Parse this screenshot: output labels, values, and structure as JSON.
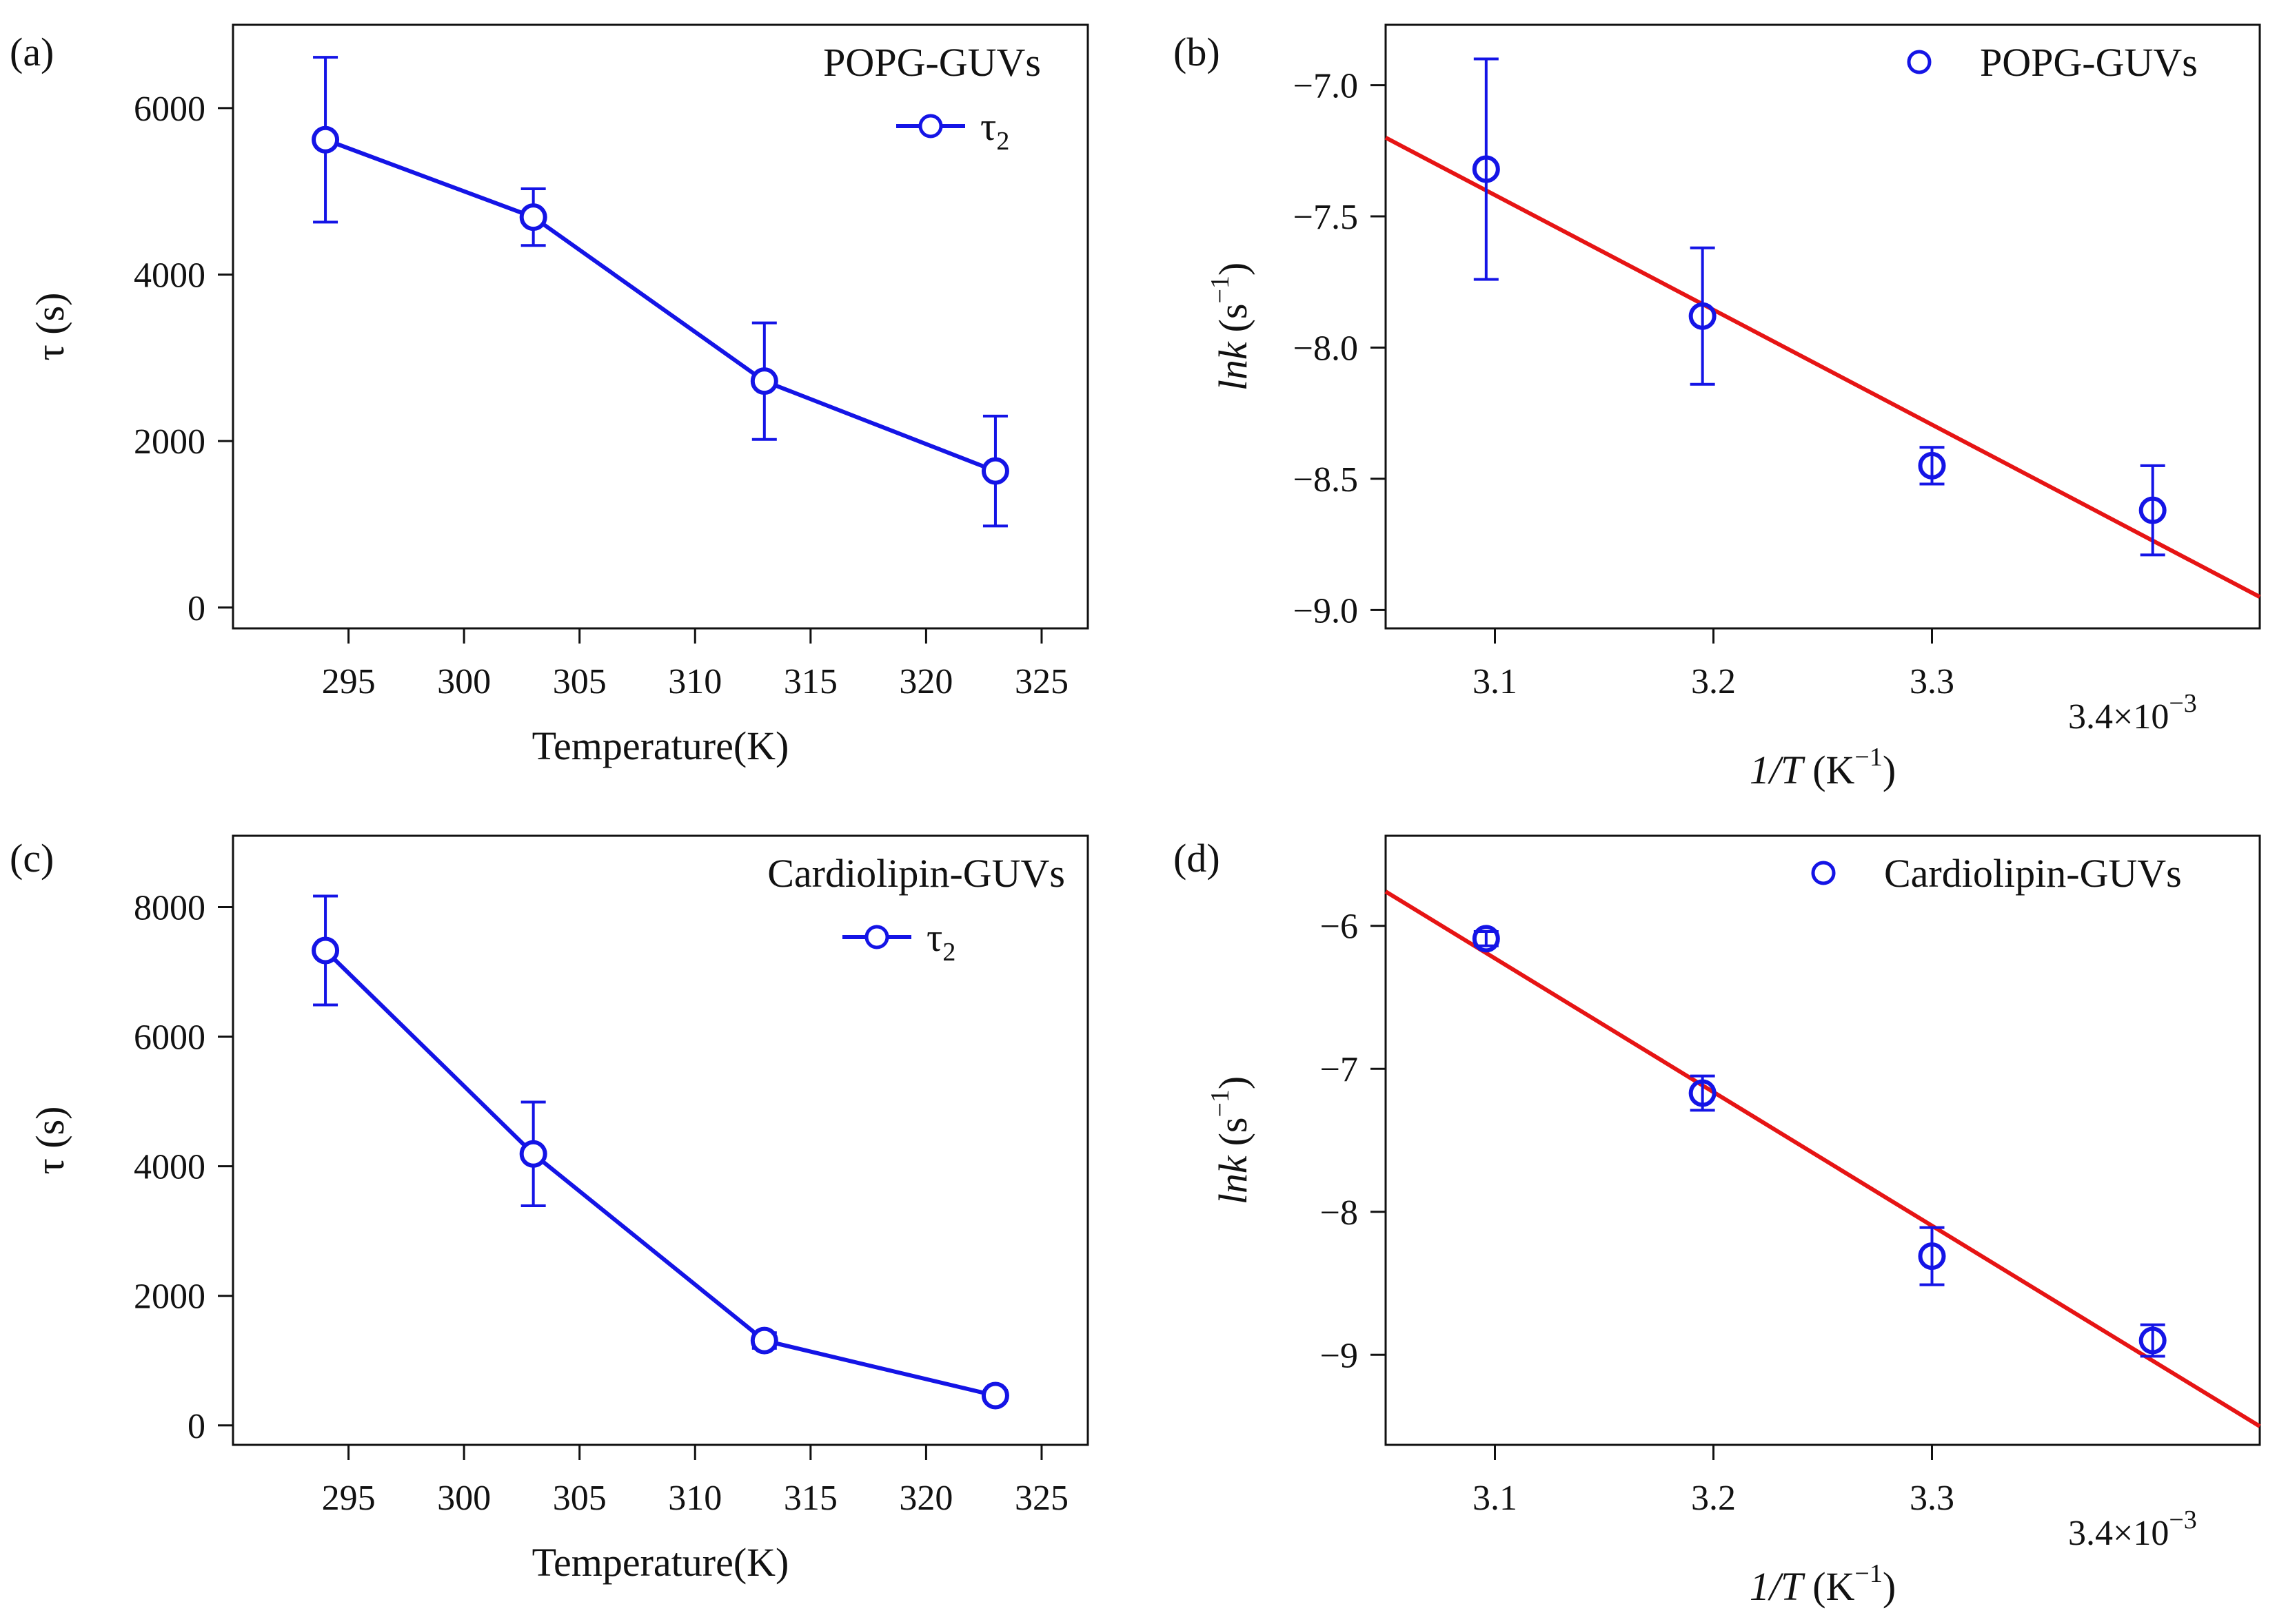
{
  "chart_data": [
    {
      "id": "a",
      "type": "line",
      "panel_label": "(a)",
      "legend_title": "POPG-GUVs",
      "xlabel": "Temperature(K)",
      "ylabel": "τ (s)",
      "xlim": [
        290,
        327
      ],
      "ylim": [
        -250,
        7000
      ],
      "xticks": [
        295,
        300,
        305,
        310,
        315,
        320,
        325
      ],
      "yticks": [
        0,
        2000,
        4000,
        6000
      ],
      "series": [
        {
          "name": "τ2",
          "name_base": "τ",
          "name_sub": "2",
          "color": "#1414e6",
          "x": [
            294,
            303,
            313,
            323
          ],
          "y": [
            5620,
            4690,
            2720,
            1640
          ],
          "err": [
            990,
            340,
            700,
            660
          ]
        }
      ]
    },
    {
      "id": "b",
      "type": "scatter",
      "panel_label": "(b)",
      "legend_title": "POPG-GUVs",
      "xlabel_italic": "1/T",
      "xlabel_unit": "(K",
      "xlabel_exp": "−1",
      "xlabel_close": ")",
      "ylabel_italic": "lnk",
      "ylabel_unit": "(s",
      "ylabel_exp": "−1",
      "ylabel_close": ")",
      "x_multiplier_label": "3.4×10",
      "x_multiplier_exp": "−3",
      "xlim": [
        3.05,
        3.45
      ],
      "ylim": [
        -9.07,
        -6.77
      ],
      "xticks": [
        3.1,
        3.2,
        3.3
      ],
      "xtick_labels": [
        "3.1",
        "3.2",
        "3.3"
      ],
      "yticks": [
        -7.0,
        -7.5,
        -8.0,
        -8.5,
        -9.0
      ],
      "ytick_labels": [
        "−7.0",
        "−7.5",
        "−8.0",
        "−8.5",
        "−9.0"
      ],
      "series": [
        {
          "name": "POPG-GUVs",
          "color": "#1414e6",
          "x": [
            3.096,
            3.195,
            3.3,
            3.401
          ],
          "y": [
            -7.32,
            -7.88,
            -8.45,
            -8.62
          ],
          "err": [
            0.42,
            0.26,
            0.07,
            0.17
          ]
        }
      ],
      "fit_line": {
        "color": "#e61414",
        "x": [
          3.05,
          3.45
        ],
        "y": [
          -7.2,
          -8.95
        ]
      }
    },
    {
      "id": "c",
      "type": "line",
      "panel_label": "(c)",
      "legend_title": "Cardiolipin-GUVs",
      "xlabel": "Temperature(K)",
      "ylabel": "τ (s)",
      "xlim": [
        290,
        327
      ],
      "ylim": [
        -300,
        9100
      ],
      "xticks": [
        295,
        300,
        305,
        310,
        315,
        320,
        325
      ],
      "yticks": [
        0,
        2000,
        4000,
        6000,
        8000
      ],
      "series": [
        {
          "name": "τ2",
          "name_base": "τ",
          "name_sub": "2",
          "color": "#1414e6",
          "x": [
            294,
            303,
            313,
            323
          ],
          "y": [
            7330,
            4190,
            1310,
            460
          ],
          "err": [
            840,
            800,
            120,
            80
          ]
        }
      ]
    },
    {
      "id": "d",
      "type": "scatter",
      "panel_label": "(d)",
      "legend_title": "Cardiolipin-GUVs",
      "xlabel_italic": "1/T",
      "xlabel_unit": "(K",
      "xlabel_exp": "−1",
      "xlabel_close": ")",
      "ylabel_italic": "lnk",
      "ylabel_unit": "(s",
      "ylabel_exp": "−1",
      "ylabel_close": ")",
      "x_multiplier_label": "3.4×10",
      "x_multiplier_exp": "−3",
      "xlim": [
        3.05,
        3.45
      ],
      "ylim": [
        -9.63,
        -5.37
      ],
      "xticks": [
        3.1,
        3.2,
        3.3
      ],
      "xtick_labels": [
        "3.1",
        "3.2",
        "3.3"
      ],
      "yticks": [
        -6,
        -7,
        -8,
        -9
      ],
      "ytick_labels": [
        "−6",
        "−7",
        "−8",
        "−9"
      ],
      "series": [
        {
          "name": "Cardiolipin-GUVs",
          "color": "#1414e6",
          "x": [
            3.096,
            3.195,
            3.3,
            3.401
          ],
          "y": [
            -6.09,
            -7.17,
            -8.31,
            -8.9
          ],
          "err": [
            0.05,
            0.12,
            0.2,
            0.11
          ]
        }
      ],
      "fit_line": {
        "color": "#e61414",
        "x": [
          3.05,
          3.45
        ],
        "y": [
          -5.76,
          -9.5
        ]
      }
    }
  ]
}
